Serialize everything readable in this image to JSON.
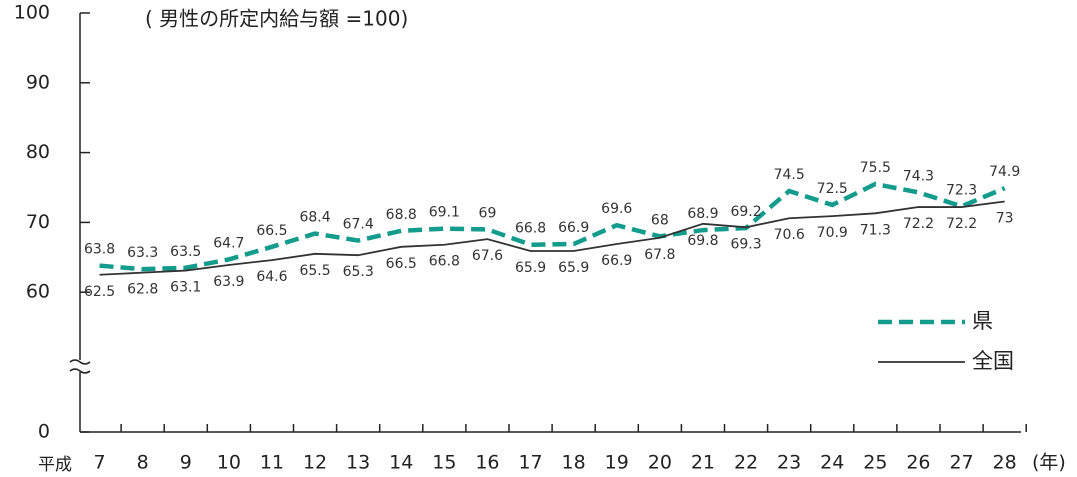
{
  "chart_data": {
    "type": "line",
    "annotation": "( 男性の所定内給与額 =100)",
    "x_prefix": "平成",
    "x_unit": "(年)",
    "categories": [
      "7",
      "8",
      "9",
      "10",
      "11",
      "12",
      "13",
      "14",
      "15",
      "16",
      "17",
      "18",
      "19",
      "20",
      "21",
      "22",
      "23",
      "24",
      "25",
      "26",
      "27",
      "28"
    ],
    "series": [
      {
        "name": "県",
        "color": "#139c8c",
        "line_style": "dashed",
        "values": [
          63.8,
          63.3,
          63.5,
          64.7,
          66.5,
          68.4,
          67.4,
          68.8,
          69.1,
          69.0,
          66.8,
          66.9,
          69.6,
          68.0,
          68.9,
          69.2,
          74.5,
          72.5,
          75.5,
          74.3,
          72.3,
          74.9
        ]
      },
      {
        "name": "全国",
        "color": "#333333",
        "line_style": "solid",
        "values": [
          62.5,
          62.8,
          63.1,
          63.9,
          64.6,
          65.5,
          65.3,
          66.5,
          66.8,
          67.6,
          65.9,
          65.9,
          66.9,
          67.8,
          69.8,
          69.3,
          70.6,
          70.9,
          71.3,
          72.2,
          72.2,
          73.0
        ]
      }
    ],
    "ylim": [
      0,
      100
    ],
    "y_break": [
      0,
      50
    ],
    "yticks": [
      0,
      60,
      70,
      80,
      90,
      100
    ],
    "legend": "lower right"
  }
}
